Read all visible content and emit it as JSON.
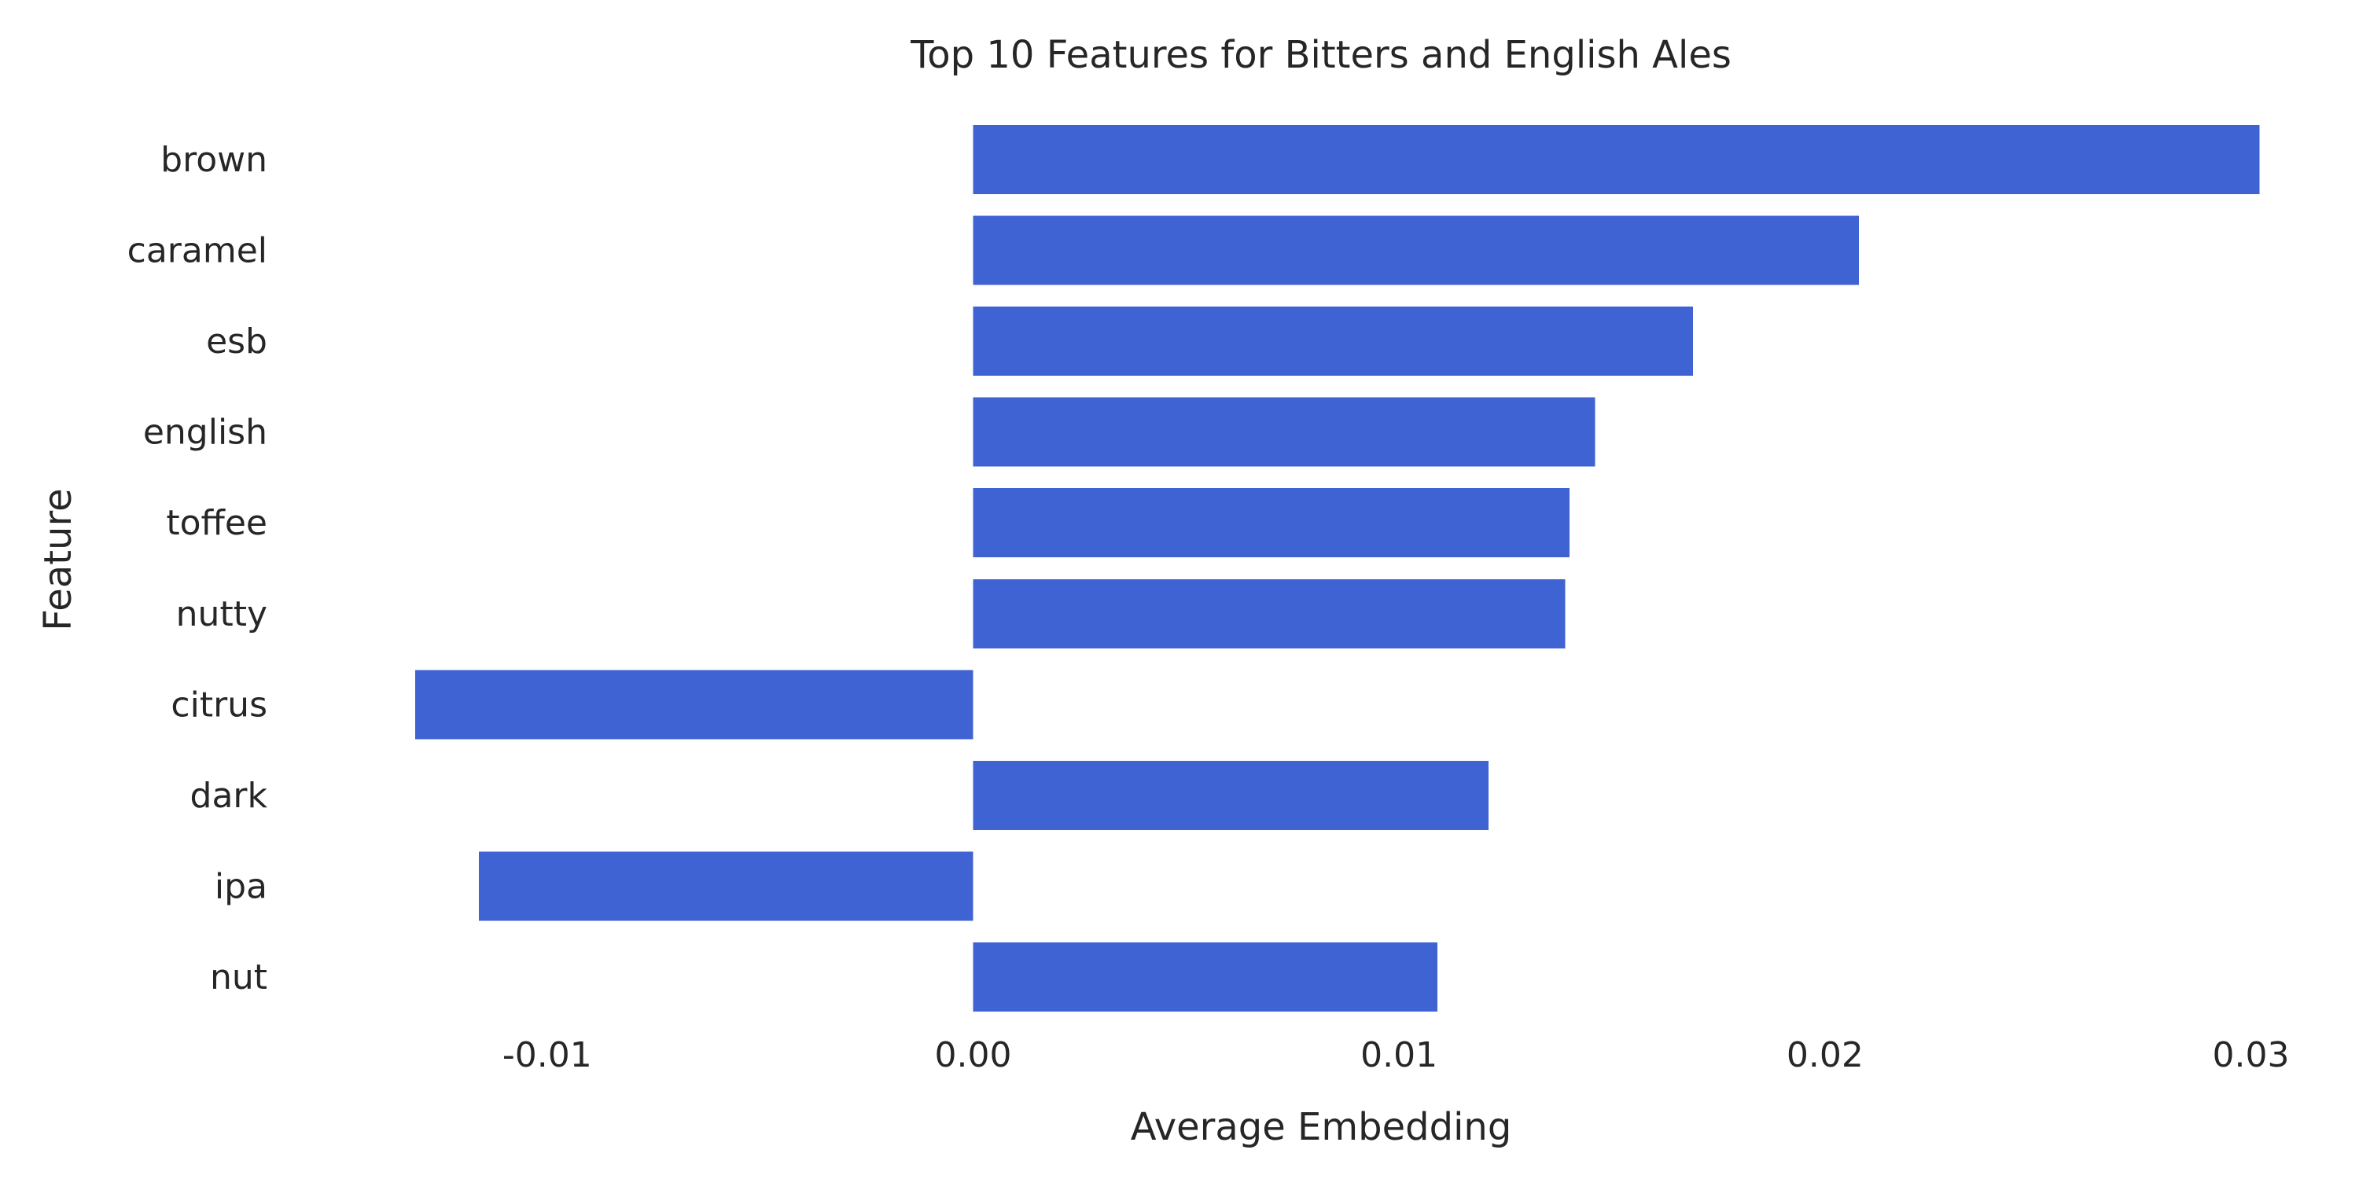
{
  "chart_data": {
    "type": "bar",
    "orientation": "horizontal",
    "title": "Top 10 Features for Bitters and English Ales",
    "xlabel": "Average Embedding",
    "ylabel": "Feature",
    "categories": [
      "brown",
      "caramel",
      "esb",
      "english",
      "toffee",
      "nutty",
      "citrus",
      "dark",
      "ipa",
      "nut"
    ],
    "values": [
      0.0302,
      0.0208,
      0.0169,
      0.0146,
      0.014,
      0.0139,
      -0.0131,
      0.0121,
      -0.0116,
      0.0109
    ],
    "xticks": [
      -0.01,
      0.0,
      0.01,
      0.02,
      0.03
    ],
    "xtick_labels": [
      "-0.01",
      "0.00",
      "0.01",
      "0.02",
      "0.03"
    ],
    "xlim": [
      -0.0162,
      0.0318
    ],
    "grid": false,
    "bar_color": "#3f63d2"
  }
}
